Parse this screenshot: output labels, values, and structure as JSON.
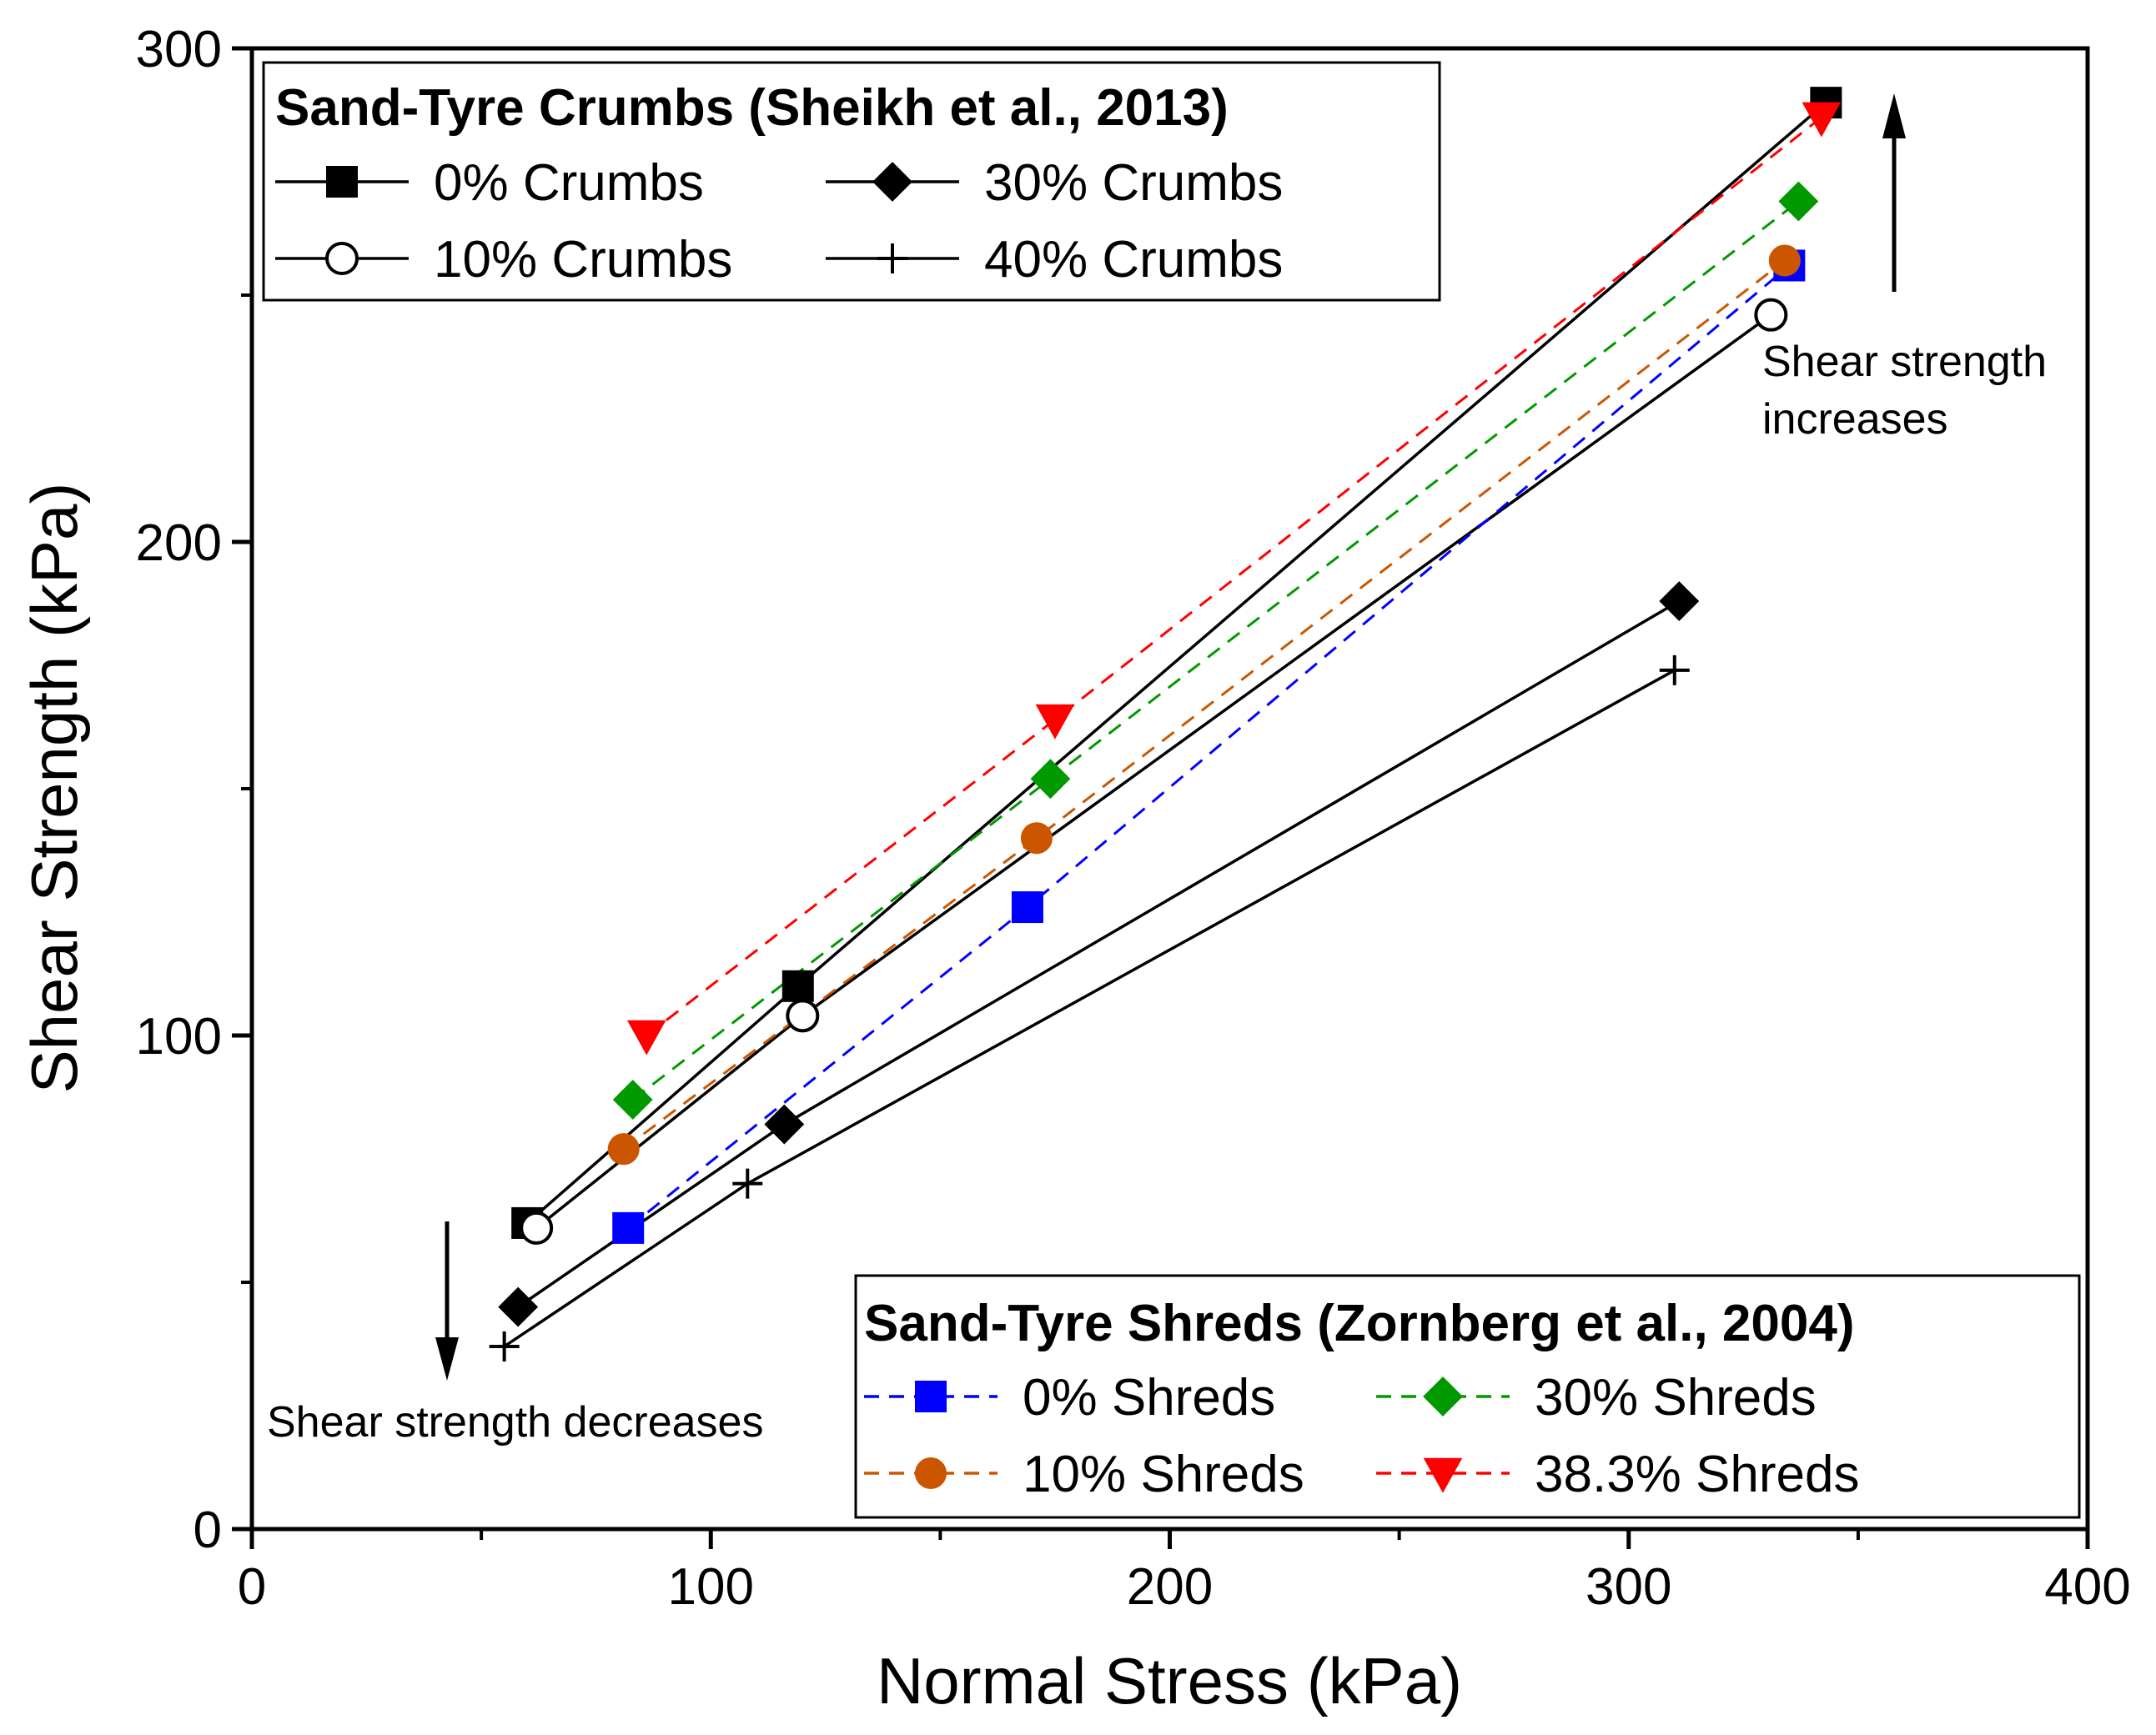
{
  "chart_data": {
    "type": "line",
    "xlabel": "Normal Stress (kPa)",
    "ylabel": "Shear Strength (kPa)",
    "xlim": [
      0,
      400
    ],
    "ylim": [
      0,
      300
    ],
    "xticks": [
      0,
      100,
      200,
      300,
      400
    ],
    "yticks": [
      0,
      100,
      200,
      300
    ],
    "grid": false,
    "legends": [
      {
        "title": "Sand-Tyre Crumbs (Sheikh et al., 2013)",
        "placement": "top-left",
        "entries": [
          "0% Crumbs",
          "30% Crumbs",
          "10% Crumbs",
          "40% Crumbs"
        ]
      },
      {
        "title": "Sand-Tyre Shreds (Zornberg et al., 2004)",
        "placement": "bottom-right",
        "entries": [
          "0% Shreds",
          "30% Shreds",
          "10% Shreds",
          "38.3% Shreds"
        ]
      }
    ],
    "series": [
      {
        "name": "0% Crumbs",
        "group": "crumbs",
        "color": "#000000",
        "line": "solid",
        "marker": "square-filled",
        "x": [
          60,
          119,
          343
        ],
        "y": [
          62,
          110,
          289
        ]
      },
      {
        "name": "30% Crumbs",
        "group": "crumbs",
        "color": "#000000",
        "line": "solid",
        "marker": "diamond-filled",
        "x": [
          58,
          116,
          311
        ],
        "y": [
          45,
          82,
          188
        ]
      },
      {
        "name": "10% Crumbs",
        "group": "crumbs",
        "color": "#000000",
        "line": "solid",
        "marker": "circle-open",
        "x": [
          62,
          120,
          331
        ],
        "y": [
          61,
          104,
          246
        ]
      },
      {
        "name": "40% Crumbs",
        "group": "crumbs",
        "color": "#000000",
        "line": "solid",
        "marker": "plus",
        "x": [
          55,
          108,
          310
        ],
        "y": [
          37,
          70,
          174
        ]
      },
      {
        "name": "0% Shreds",
        "group": "shreds",
        "color": "#0000ff",
        "line": "dashed",
        "marker": "square-filled",
        "x": [
          82,
          169,
          335
        ],
        "y": [
          61,
          126,
          256
        ]
      },
      {
        "name": "30% Shreds",
        "group": "shreds",
        "color": "#009900",
        "line": "dashed",
        "marker": "diamond-filled",
        "x": [
          83,
          174,
          337
        ],
        "y": [
          87,
          152,
          269
        ]
      },
      {
        "name": "10% Shreds",
        "group": "shreds",
        "color": "#cc5500",
        "line": "dashed",
        "marker": "circle-filled",
        "x": [
          81,
          171,
          334
        ],
        "y": [
          77,
          140,
          257
        ]
      },
      {
        "name": "38.3% Shreds",
        "group": "shreds",
        "color": "#ff0000",
        "line": "dashed",
        "marker": "triangle-down-filled",
        "x": [
          86,
          175,
          342
        ],
        "y": [
          100,
          164,
          286
        ]
      }
    ],
    "annotations": [
      {
        "text": [
          "Shear strength",
          "increases"
        ],
        "arrow": "up"
      },
      {
        "text": [
          "Shear strength decreases"
        ],
        "arrow": "down"
      }
    ]
  }
}
